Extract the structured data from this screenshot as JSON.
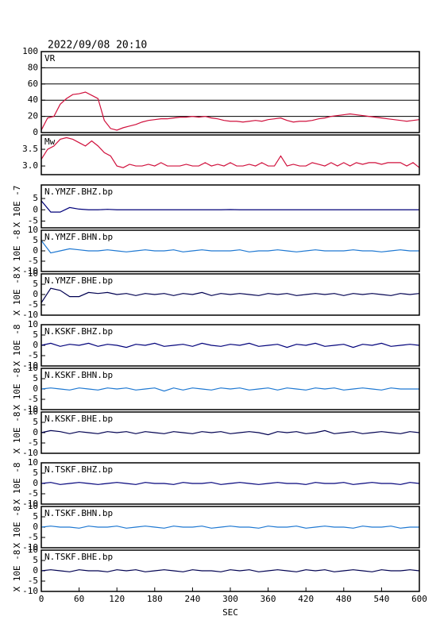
{
  "chart_data": [
    {
      "type": "line",
      "title": "2022/09/08 20:10",
      "xlim": [
        0,
        600
      ],
      "ylim": [
        0,
        100
      ],
      "yticks": [
        0,
        20,
        40,
        60,
        80,
        100
      ],
      "grid": true,
      "x": [
        0,
        10,
        20,
        30,
        40,
        50,
        60,
        70,
        80,
        90,
        100,
        110,
        120,
        130,
        140,
        150,
        160,
        170,
        180,
        190,
        200,
        210,
        220,
        230,
        240,
        250,
        260,
        270,
        280,
        290,
        300,
        310,
        320,
        330,
        340,
        350,
        360,
        370,
        380,
        390,
        400,
        410,
        420,
        430,
        440,
        450,
        460,
        470,
        480,
        490,
        500,
        510,
        520,
        530,
        540,
        550,
        560,
        570,
        580,
        590,
        600
      ],
      "series": [
        {
          "name": "VR",
          "color": "#d0103c",
          "values": [
            3,
            18,
            20,
            35,
            42,
            47,
            48,
            50,
            46,
            42,
            15,
            5,
            3,
            6,
            8,
            10,
            13,
            15,
            16,
            17,
            17,
            18,
            19,
            19,
            20,
            19,
            20,
            18,
            17,
            15,
            14,
            14,
            13,
            14,
            15,
            14,
            16,
            17,
            18,
            15,
            13,
            14,
            14,
            15,
            17,
            18,
            20,
            21,
            22,
            23,
            22,
            21,
            20,
            19,
            18,
            17,
            16,
            15,
            14,
            15,
            16
          ]
        }
      ]
    },
    {
      "type": "line",
      "xlim": [
        0,
        600
      ],
      "ylim": [
        2.74,
        3.93
      ],
      "yticks": [
        {
          "value": 3,
          "label": "3.0"
        },
        3.5
      ],
      "grid": false,
      "x": [
        0,
        10,
        20,
        30,
        40,
        50,
        60,
        70,
        80,
        90,
        100,
        110,
        120,
        130,
        140,
        150,
        160,
        170,
        180,
        190,
        200,
        210,
        220,
        230,
        240,
        250,
        260,
        270,
        280,
        290,
        300,
        310,
        320,
        330,
        340,
        350,
        360,
        370,
        380,
        390,
        400,
        410,
        420,
        430,
        440,
        450,
        460,
        470,
        480,
        490,
        500,
        510,
        520,
        530,
        540,
        550,
        560,
        570,
        580,
        590,
        600
      ],
      "series": [
        {
          "name": "Mw",
          "color": "#d0103c",
          "values": [
            3.2,
            3.5,
            3.6,
            3.8,
            3.85,
            3.8,
            3.7,
            3.6,
            3.75,
            3.6,
            3.4,
            3.3,
            3.0,
            2.95,
            3.05,
            3.0,
            3.0,
            3.05,
            3.0,
            3.1,
            3.0,
            3.0,
            3.0,
            3.05,
            3.0,
            3.0,
            3.1,
            3.0,
            3.05,
            3.0,
            3.1,
            3.0,
            3.0,
            3.05,
            3.0,
            3.1,
            3.0,
            3.0,
            3.3,
            3.0,
            3.05,
            3.0,
            3.0,
            3.1,
            3.05,
            3.0,
            3.1,
            3.0,
            3.1,
            3.0,
            3.1,
            3.05,
            3.1,
            3.1,
            3.05,
            3.1,
            3.1,
            3.1,
            3.0,
            3.1,
            2.95
          ]
        }
      ]
    },
    {
      "type": "line",
      "ylabel": "X 10E -7",
      "xlim": [
        0,
        600
      ],
      "ylim": [
        -8,
        11
      ],
      "yticks": [
        -5,
        0,
        5
      ],
      "grid": false,
      "x": [
        0,
        15,
        30,
        45,
        60,
        75,
        90,
        105,
        120,
        135,
        150,
        165,
        180,
        195,
        210,
        225,
        240,
        255,
        270,
        285,
        300,
        315,
        330,
        345,
        360,
        375,
        390,
        405,
        420,
        435,
        450,
        465,
        480,
        495,
        510,
        525,
        540,
        555,
        570,
        585,
        600
      ],
      "series": [
        {
          "name": "N.YMZF.BHZ.bp",
          "color": "#00007a",
          "values": [
            4,
            -1,
            -1,
            1,
            0.3,
            0,
            0,
            0.2,
            0,
            0,
            0,
            0,
            0,
            0,
            0,
            0,
            0,
            0,
            0,
            0,
            0.1,
            0,
            0,
            0,
            0,
            0,
            0,
            0,
            0,
            0,
            0,
            0,
            0,
            0,
            0,
            0,
            0,
            0,
            0,
            0,
            0
          ]
        }
      ]
    },
    {
      "type": "line",
      "ylabel": "X 10E -8",
      "xlim": [
        0,
        600
      ],
      "ylim": [
        -10,
        10
      ],
      "yticks": [
        -10,
        -5,
        0,
        5,
        10
      ],
      "grid": false,
      "x": [
        0,
        15,
        30,
        45,
        60,
        75,
        90,
        105,
        120,
        135,
        150,
        165,
        180,
        195,
        210,
        225,
        240,
        255,
        270,
        285,
        300,
        315,
        330,
        345,
        360,
        375,
        390,
        405,
        420,
        435,
        450,
        465,
        480,
        495,
        510,
        525,
        540,
        555,
        570,
        585,
        600
      ],
      "series": [
        {
          "name": "N.YMZF.BHN.bp",
          "color": "#1e78d2",
          "values": [
            5,
            -1,
            0,
            1,
            0.5,
            0,
            0,
            0.5,
            0,
            -0.5,
            0,
            0.5,
            0,
            0,
            0.5,
            -0.5,
            0,
            0.5,
            0,
            0,
            0,
            0.5,
            -0.5,
            0,
            0,
            0.5,
            0,
            -0.5,
            0,
            0.5,
            0,
            0,
            0,
            0.5,
            0,
            0,
            -0.5,
            0,
            0.5,
            0,
            0
          ]
        }
      ]
    },
    {
      "type": "line",
      "ylabel": "X 10E -8",
      "xlim": [
        0,
        600
      ],
      "ylim": [
        -10,
        10
      ],
      "yticks": [
        -10,
        -5,
        0,
        5,
        10
      ],
      "grid": false,
      "x": [
        0,
        15,
        30,
        45,
        60,
        75,
        90,
        105,
        120,
        135,
        150,
        165,
        180,
        195,
        210,
        225,
        240,
        255,
        270,
        285,
        300,
        315,
        330,
        345,
        360,
        375,
        390,
        405,
        420,
        435,
        450,
        465,
        480,
        495,
        510,
        525,
        540,
        555,
        570,
        585,
        600
      ],
      "series": [
        {
          "name": "N.YMZF.BHE.bp",
          "color": "#000050",
          "values": [
            -4,
            3,
            2,
            -1,
            -1,
            1,
            0.5,
            1,
            0,
            0.5,
            -0.5,
            0.5,
            0,
            0.5,
            -0.5,
            0.5,
            0,
            1,
            -0.5,
            0.5,
            0,
            0.5,
            0,
            -0.5,
            0.5,
            0,
            0.5,
            -0.5,
            0,
            0.5,
            0,
            0.5,
            -0.5,
            0.5,
            0,
            0.5,
            0,
            -0.5,
            0.5,
            0,
            0.5
          ]
        }
      ]
    },
    {
      "type": "line",
      "ylabel": "X 10E -8",
      "xlim": [
        0,
        600
      ],
      "ylim": [
        -10,
        10
      ],
      "yticks": [
        -10,
        -5,
        0,
        5,
        10
      ],
      "grid": false,
      "x": [
        0,
        15,
        30,
        45,
        60,
        75,
        90,
        105,
        120,
        135,
        150,
        165,
        180,
        195,
        210,
        225,
        240,
        255,
        270,
        285,
        300,
        315,
        330,
        345,
        360,
        375,
        390,
        405,
        420,
        435,
        450,
        465,
        480,
        495,
        510,
        525,
        540,
        555,
        570,
        585,
        600
      ],
      "series": [
        {
          "name": "N.KSKF.BHZ.bp",
          "color": "#00007a",
          "values": [
            0,
            1,
            -0.5,
            0.5,
            0,
            1,
            -0.5,
            0.5,
            0,
            -1,
            0.5,
            0,
            1,
            -0.5,
            0,
            0.5,
            -0.5,
            1,
            0,
            -0.5,
            0.5,
            0,
            1,
            -0.5,
            0,
            0.5,
            -1,
            0.5,
            0,
            1,
            -0.5,
            0,
            0.5,
            -1,
            0.5,
            0,
            1,
            -0.5,
            0,
            0.5,
            0
          ]
        }
      ]
    },
    {
      "type": "line",
      "ylabel": "X 10E -8",
      "xlim": [
        0,
        600
      ],
      "ylim": [
        -10,
        10
      ],
      "yticks": [
        -10,
        -5,
        0,
        5,
        10
      ],
      "grid": false,
      "x": [
        0,
        15,
        30,
        45,
        60,
        75,
        90,
        105,
        120,
        135,
        150,
        165,
        180,
        195,
        210,
        225,
        240,
        255,
        270,
        285,
        300,
        315,
        330,
        345,
        360,
        375,
        390,
        405,
        420,
        435,
        450,
        465,
        480,
        495,
        510,
        525,
        540,
        555,
        570,
        585,
        600
      ],
      "series": [
        {
          "name": "N.KSKF.BHN.bp",
          "color": "#1e78d2",
          "values": [
            0,
            0.5,
            0,
            -0.5,
            0.5,
            0,
            -0.5,
            0.5,
            0,
            0.5,
            -0.5,
            0,
            0.5,
            -1,
            0.5,
            -0.5,
            0.5,
            0,
            -0.5,
            0.5,
            0,
            0.5,
            -0.5,
            0,
            0.5,
            -0.5,
            0.5,
            0,
            -0.5,
            0.5,
            0,
            0.5,
            -0.5,
            0,
            0.5,
            0,
            -0.5,
            0.5,
            0,
            0,
            0
          ]
        }
      ]
    },
    {
      "type": "line",
      "ylabel": "X 10E -8",
      "xlim": [
        0,
        600
      ],
      "ylim": [
        -10,
        10
      ],
      "yticks": [
        -10,
        -5,
        0,
        5,
        10
      ],
      "grid": false,
      "x": [
        0,
        15,
        30,
        45,
        60,
        75,
        90,
        105,
        120,
        135,
        150,
        165,
        180,
        195,
        210,
        225,
        240,
        255,
        270,
        285,
        300,
        315,
        330,
        345,
        360,
        375,
        390,
        405,
        420,
        435,
        450,
        465,
        480,
        495,
        510,
        525,
        540,
        555,
        570,
        585,
        600
      ],
      "series": [
        {
          "name": "N.KSKF.BHE.bp",
          "color": "#000050",
          "values": [
            0,
            1,
            0.5,
            -0.5,
            0.5,
            0,
            -0.5,
            0.5,
            0,
            0.5,
            -0.5,
            0.5,
            0,
            -0.5,
            0.5,
            0,
            -0.5,
            0.5,
            0,
            0.5,
            -0.5,
            0,
            0.5,
            0,
            -1,
            0.5,
            0,
            0.5,
            -0.5,
            0,
            1,
            -0.5,
            0,
            0.5,
            -0.5,
            0,
            0.5,
            0,
            -0.5,
            0.5,
            0
          ]
        }
      ]
    },
    {
      "type": "line",
      "ylabel": "X 10E -8",
      "xlim": [
        0,
        600
      ],
      "ylim": [
        -10,
        10
      ],
      "yticks": [
        -10,
        -5,
        0,
        5,
        10
      ],
      "grid": false,
      "x": [
        0,
        15,
        30,
        45,
        60,
        75,
        90,
        105,
        120,
        135,
        150,
        165,
        180,
        195,
        210,
        225,
        240,
        255,
        270,
        285,
        300,
        315,
        330,
        345,
        360,
        375,
        390,
        405,
        420,
        435,
        450,
        465,
        480,
        495,
        510,
        525,
        540,
        555,
        570,
        585,
        600
      ],
      "series": [
        {
          "name": "N.TSKF.BHZ.bp",
          "color": "#00007a",
          "values": [
            0,
            0.5,
            -0.5,
            0,
            0.5,
            0,
            -0.5,
            0,
            0.5,
            0,
            -0.5,
            0.5,
            0,
            0,
            -0.5,
            0.5,
            0,
            0,
            0.5,
            -0.5,
            0,
            0.5,
            0,
            -0.5,
            0,
            0.5,
            0,
            0,
            -0.5,
            0.5,
            0,
            0,
            0.5,
            -0.5,
            0,
            0.5,
            0,
            0,
            -0.5,
            0.5,
            0
          ]
        }
      ]
    },
    {
      "type": "line",
      "ylabel": "X 10E -8",
      "xlim": [
        0,
        600
      ],
      "ylim": [
        -10,
        10
      ],
      "yticks": [
        -10,
        -5,
        0,
        5,
        10
      ],
      "grid": false,
      "x": [
        0,
        15,
        30,
        45,
        60,
        75,
        90,
        105,
        120,
        135,
        150,
        165,
        180,
        195,
        210,
        225,
        240,
        255,
        270,
        285,
        300,
        315,
        330,
        345,
        360,
        375,
        390,
        405,
        420,
        435,
        450,
        465,
        480,
        495,
        510,
        525,
        540,
        555,
        570,
        585,
        600
      ],
      "series": [
        {
          "name": "N.TSKF.BHN.bp",
          "color": "#1e78d2",
          "values": [
            0,
            0.5,
            0,
            0,
            -0.5,
            0.5,
            0,
            0,
            0.5,
            -0.5,
            0,
            0.5,
            0,
            -0.5,
            0.5,
            0,
            0,
            0.5,
            -0.5,
            0,
            0.5,
            0,
            0,
            -0.5,
            0.5,
            0,
            0,
            0.5,
            -0.5,
            0,
            0.5,
            0,
            0,
            -0.5,
            0.5,
            0,
            0,
            0.5,
            -0.5,
            0,
            0
          ]
        }
      ]
    },
    {
      "type": "line",
      "ylabel": "X 10E -8",
      "xlabel": "SEC",
      "xlim": [
        0,
        600
      ],
      "xticks": [
        0,
        60,
        120,
        180,
        240,
        300,
        360,
        420,
        480,
        540,
        600
      ],
      "ylim": [
        -10,
        10
      ],
      "yticks": [
        -10,
        -5,
        0,
        5,
        10
      ],
      "grid": false,
      "x": [
        0,
        15,
        30,
        45,
        60,
        75,
        90,
        105,
        120,
        135,
        150,
        165,
        180,
        195,
        210,
        225,
        240,
        255,
        270,
        285,
        300,
        315,
        330,
        345,
        360,
        375,
        390,
        405,
        420,
        435,
        450,
        465,
        480,
        495,
        510,
        525,
        540,
        555,
        570,
        585,
        600
      ],
      "series": [
        {
          "name": "N.TSKF.BHE.bp",
          "color": "#000050",
          "values": [
            0,
            0.5,
            0,
            -0.5,
            0.5,
            0,
            0,
            -0.5,
            0.5,
            0,
            0.5,
            -0.5,
            0,
            0.5,
            0,
            -0.5,
            0.5,
            0,
            0,
            -0.5,
            0.5,
            0,
            0.5,
            -0.5,
            0,
            0.5,
            0,
            -0.5,
            0.5,
            0,
            0.5,
            -0.5,
            0,
            0.5,
            0,
            -0.5,
            0.5,
            0,
            0,
            0.5,
            0
          ]
        }
      ]
    }
  ]
}
